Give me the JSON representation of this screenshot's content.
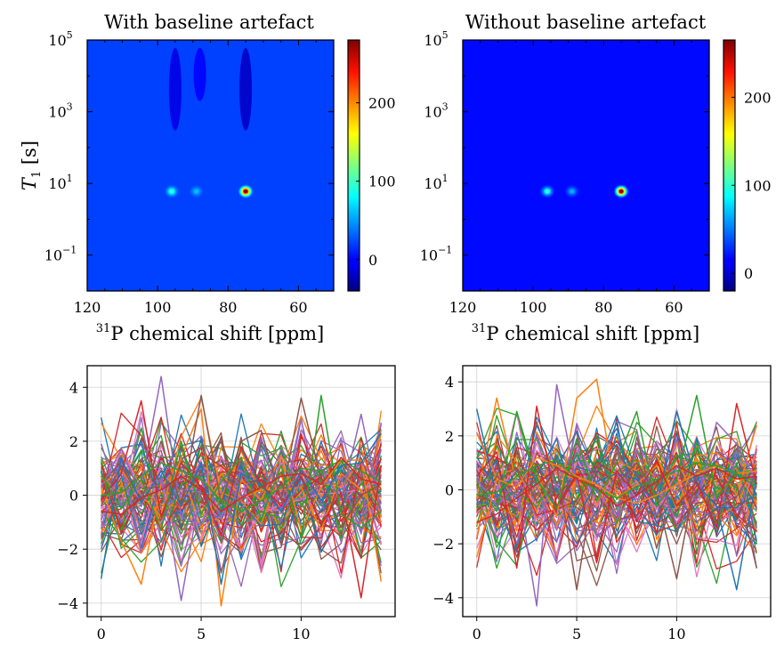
{
  "chart_data": [
    {
      "type": "heatmap",
      "title": "With baseline artefact",
      "xlabel_sup": "31",
      "xlabel_rest": "P chemical shift [ppm]",
      "ylabel_sym": "T",
      "ylabel_sub": "1",
      "ylabel_rest": " [s]",
      "xlim": [
        120,
        50
      ],
      "xticks": [
        120,
        100,
        80,
        60
      ],
      "ylim": [
        0.01,
        100000
      ],
      "yscale": "log",
      "yticks": [
        {
          "base": "10",
          "exp": "5",
          "value": 100000
        },
        {
          "base": "10",
          "exp": "3",
          "value": 1000
        },
        {
          "base": "10",
          "exp": "1",
          "value": 10
        },
        {
          "base": "10",
          "exp": "−1",
          "value": 0.1
        }
      ],
      "colormap": "jet",
      "clim": [
        -40,
        280
      ],
      "colorbar_ticks": [
        0,
        100,
        200
      ],
      "colorbar_tick_labels": [
        "0",
        "100",
        "200"
      ],
      "peaks": [
        {
          "x": 96,
          "t1": 6,
          "value": 95
        },
        {
          "x": 89,
          "t1": 6,
          "value": 60
        },
        {
          "x": 75,
          "t1": 6,
          "value": 280
        }
      ],
      "background_value": 20,
      "artefacts": [
        {
          "x": 95,
          "t1_from": 300,
          "t1_to": 60000,
          "value": -8
        },
        {
          "x": 88,
          "t1_from": 2000,
          "t1_to": 60000,
          "value": 0
        },
        {
          "x": 75,
          "t1_from": 300,
          "t1_to": 60000,
          "value": -18
        }
      ]
    },
    {
      "type": "heatmap",
      "title": "Without baseline artefact",
      "xlabel_sup": "31",
      "xlabel_rest": "P chemical shift [ppm]",
      "xlim": [
        120,
        50
      ],
      "xticks": [
        120,
        100,
        80,
        60
      ],
      "ylim": [
        0.01,
        100000
      ],
      "yscale": "log",
      "yticks": [
        {
          "base": "10",
          "exp": "5",
          "value": 100000
        },
        {
          "base": "10",
          "exp": "3",
          "value": 1000
        },
        {
          "base": "10",
          "exp": "1",
          "value": 10
        },
        {
          "base": "10",
          "exp": "−1",
          "value": 0.1
        }
      ],
      "colormap": "jet",
      "clim": [
        -20,
        265
      ],
      "colorbar_ticks": [
        0,
        100,
        200
      ],
      "colorbar_tick_labels": [
        "0",
        "100",
        "200"
      ],
      "peaks": [
        {
          "x": 96,
          "t1": 6,
          "value": 100
        },
        {
          "x": 89,
          "t1": 6,
          "value": 65
        },
        {
          "x": 75,
          "t1": 6,
          "value": 265
        }
      ],
      "background_value": 18
    },
    {
      "type": "line",
      "x": [
        0,
        1,
        2,
        3,
        4,
        5,
        6,
        7,
        8,
        9,
        10,
        11,
        12,
        13,
        14
      ],
      "xticks": [
        0,
        5,
        10
      ],
      "xlim": [
        -0.7,
        14.7
      ],
      "ylim": [
        -4.5,
        4.8
      ],
      "yticks": [
        -4,
        -2,
        0,
        2,
        4
      ],
      "ytick_labels": [
        "−4",
        "−2",
        "0",
        "2",
        "4"
      ],
      "grid": true,
      "series_count": 90,
      "noise_sigma": 1.2,
      "color_cycle": [
        "#1f77b4",
        "#ff7f0e",
        "#2ca02c",
        "#d62728",
        "#9467bd",
        "#8c564b",
        "#e377c2"
      ],
      "highlight_series": [
        {
          "color": "#ff7f0e",
          "values": [
            0.3,
            -1.7,
            -3.3,
            0.4,
            0.9,
            -1.2,
            0.8,
            -0.1,
            0.2,
            0.2,
            0.3,
            -1.3,
            0.8,
            0.2,
            -1.0
          ]
        },
        {
          "color": "#ff7f0e",
          "values": [
            0.4,
            0.9,
            0.0,
            -0.8,
            1.4,
            3.2,
            -4.1,
            0.6,
            -0.2,
            1.5,
            -1.3,
            0.3,
            1.3,
            1.3,
            -3.2
          ]
        },
        {
          "color": "#9467bd",
          "values": [
            1.9,
            -0.4,
            0.4,
            4.4,
            -0.8,
            -1.1,
            0.6,
            -0.2,
            1.7,
            0.0,
            0.8,
            0.4,
            0.6,
            1.2,
            0.4
          ]
        },
        {
          "color": "#9467bd",
          "values": [
            0.3,
            1.7,
            0.0,
            0.6,
            -3.9,
            0.3,
            -1.6,
            0.7,
            1.3,
            -0.5,
            0.4,
            1.0,
            -0.2,
            3.0,
            -0.6
          ]
        },
        {
          "color": "#d62728",
          "values": [
            -0.2,
            0.8,
            3.5,
            -0.8,
            1.2,
            0.3,
            -1.5,
            1.8,
            0.4,
            -0.4,
            0.7,
            -1.1,
            0.1,
            -3.8,
            1.1
          ]
        },
        {
          "color": "#8c564b",
          "values": [
            -0.4,
            1.1,
            -0.2,
            2.0,
            -0.4,
            3.7,
            -0.3,
            2.0,
            2.4,
            -0.2,
            3.6,
            0.6,
            -1.2,
            0.0,
            0.4
          ]
        },
        {
          "color": "#2ca02c",
          "values": [
            0.8,
            -0.5,
            0.6,
            -1.3,
            2.0,
            -0.7,
            0.5,
            1.4,
            -0.9,
            1.1,
            -1.6,
            3.7,
            -0.7,
            -1.2,
            -0.6
          ]
        },
        {
          "color": "#1f77b4",
          "values": [
            -3.1,
            1.4,
            -0.3,
            0.9,
            -0.4,
            1.2,
            -3.3,
            0.8,
            0.4,
            -0.6,
            0.9,
            -0.2,
            1.1,
            1.2,
            2.3
          ]
        },
        {
          "color": "#2ca02c",
          "values": [
            0.0,
            0.1,
            0.7,
            1.2,
            0.9,
            0.6,
            -0.2,
            -0.6,
            -0.2,
            0.3,
            1.0,
            0.9,
            1.3,
            0.9,
            0.5
          ]
        },
        {
          "color": "#d62728",
          "values": [
            -0.6,
            -0.7,
            -0.1,
            0.2,
            0.7,
            0.2,
            -0.6,
            -0.1,
            0.3,
            0.7,
            0.8,
            0.4,
            1.4,
            0.6,
            0.4
          ]
        }
      ]
    },
    {
      "type": "line",
      "x": [
        0,
        1,
        2,
        3,
        4,
        5,
        6,
        7,
        8,
        9,
        10,
        11,
        12,
        13,
        14
      ],
      "xticks": [
        0,
        5,
        10
      ],
      "xlim": [
        -0.7,
        14.7
      ],
      "ylim": [
        -4.7,
        4.6
      ],
      "yticks": [
        -4,
        -2,
        0,
        2,
        4
      ],
      "ytick_labels": [
        "−4",
        "−2",
        "0",
        "2",
        "4"
      ],
      "grid": true,
      "series_count": 90,
      "noise_sigma": 1.15,
      "color_cycle": [
        "#1f77b4",
        "#ff7f0e",
        "#2ca02c",
        "#d62728",
        "#9467bd",
        "#8c564b",
        "#e377c2"
      ],
      "highlight_series": [
        {
          "color": "#ff7f0e",
          "values": [
            -0.3,
            3.4,
            0.2,
            0.6,
            -1.0,
            3.4,
            4.1,
            -0.3,
            0.2,
            0.9,
            0.5,
            -1.4,
            1.0,
            -0.2,
            2.4
          ]
        },
        {
          "color": "#9467bd",
          "values": [
            0.4,
            -0.6,
            0.3,
            -4.3,
            3.9,
            0.2,
            -1.0,
            0.6,
            -0.5,
            1.7,
            0.2,
            -0.4,
            2.5,
            1.7,
            0.3
          ]
        },
        {
          "color": "#1f77b4",
          "values": [
            3.0,
            -0.3,
            0.7,
            0.5,
            1.9,
            -1.1,
            0.3,
            0.6,
            0.4,
            -0.6,
            2.9,
            0.2,
            -0.6,
            -3.7,
            0.5
          ]
        },
        {
          "color": "#d62728",
          "values": [
            0.5,
            1.4,
            -2.9,
            3.1,
            -0.6,
            0.6,
            -2.7,
            0.7,
            -0.2,
            1.1,
            -0.6,
            0.3,
            -1.4,
            3.2,
            0.2
          ]
        },
        {
          "color": "#8c564b",
          "values": [
            -0.4,
            0.3,
            0.8,
            -0.4,
            0.9,
            -3.7,
            0.9,
            0.2,
            1.0,
            -0.2,
            -3.3,
            0.7,
            0.4,
            0.2,
            -2.9
          ]
        },
        {
          "color": "#2ca02c",
          "values": [
            0.2,
            -0.8,
            2.9,
            0.4,
            -0.7,
            1.9,
            -0.4,
            1.0,
            2.9,
            -0.6,
            0.4,
            3.5,
            -0.3,
            0.6,
            0.1
          ]
        },
        {
          "color": "#ff7f0e",
          "values": [
            -2.5,
            0.4,
            0.1,
            1.2,
            0.9,
            0.5,
            0.2,
            -0.3,
            -0.5,
            -0.2,
            0.2,
            0.6,
            0.9,
            0.6,
            0.7
          ]
        },
        {
          "color": "#2ca02c",
          "values": [
            -0.2,
            -0.1,
            0.5,
            0.9,
            1.1,
            0.4,
            0.0,
            -0.3,
            0.1,
            0.4,
            0.7,
            1.0,
            0.9,
            0.6,
            0.3
          ]
        },
        {
          "color": "#d62728",
          "values": [
            -1.2,
            -0.9,
            -0.3,
            0.2,
            0.8,
            0.4,
            0.1,
            -0.6,
            -0.2,
            0.3,
            0.9,
            0.5,
            0.8,
            0.4,
            0.5
          ]
        }
      ]
    }
  ]
}
